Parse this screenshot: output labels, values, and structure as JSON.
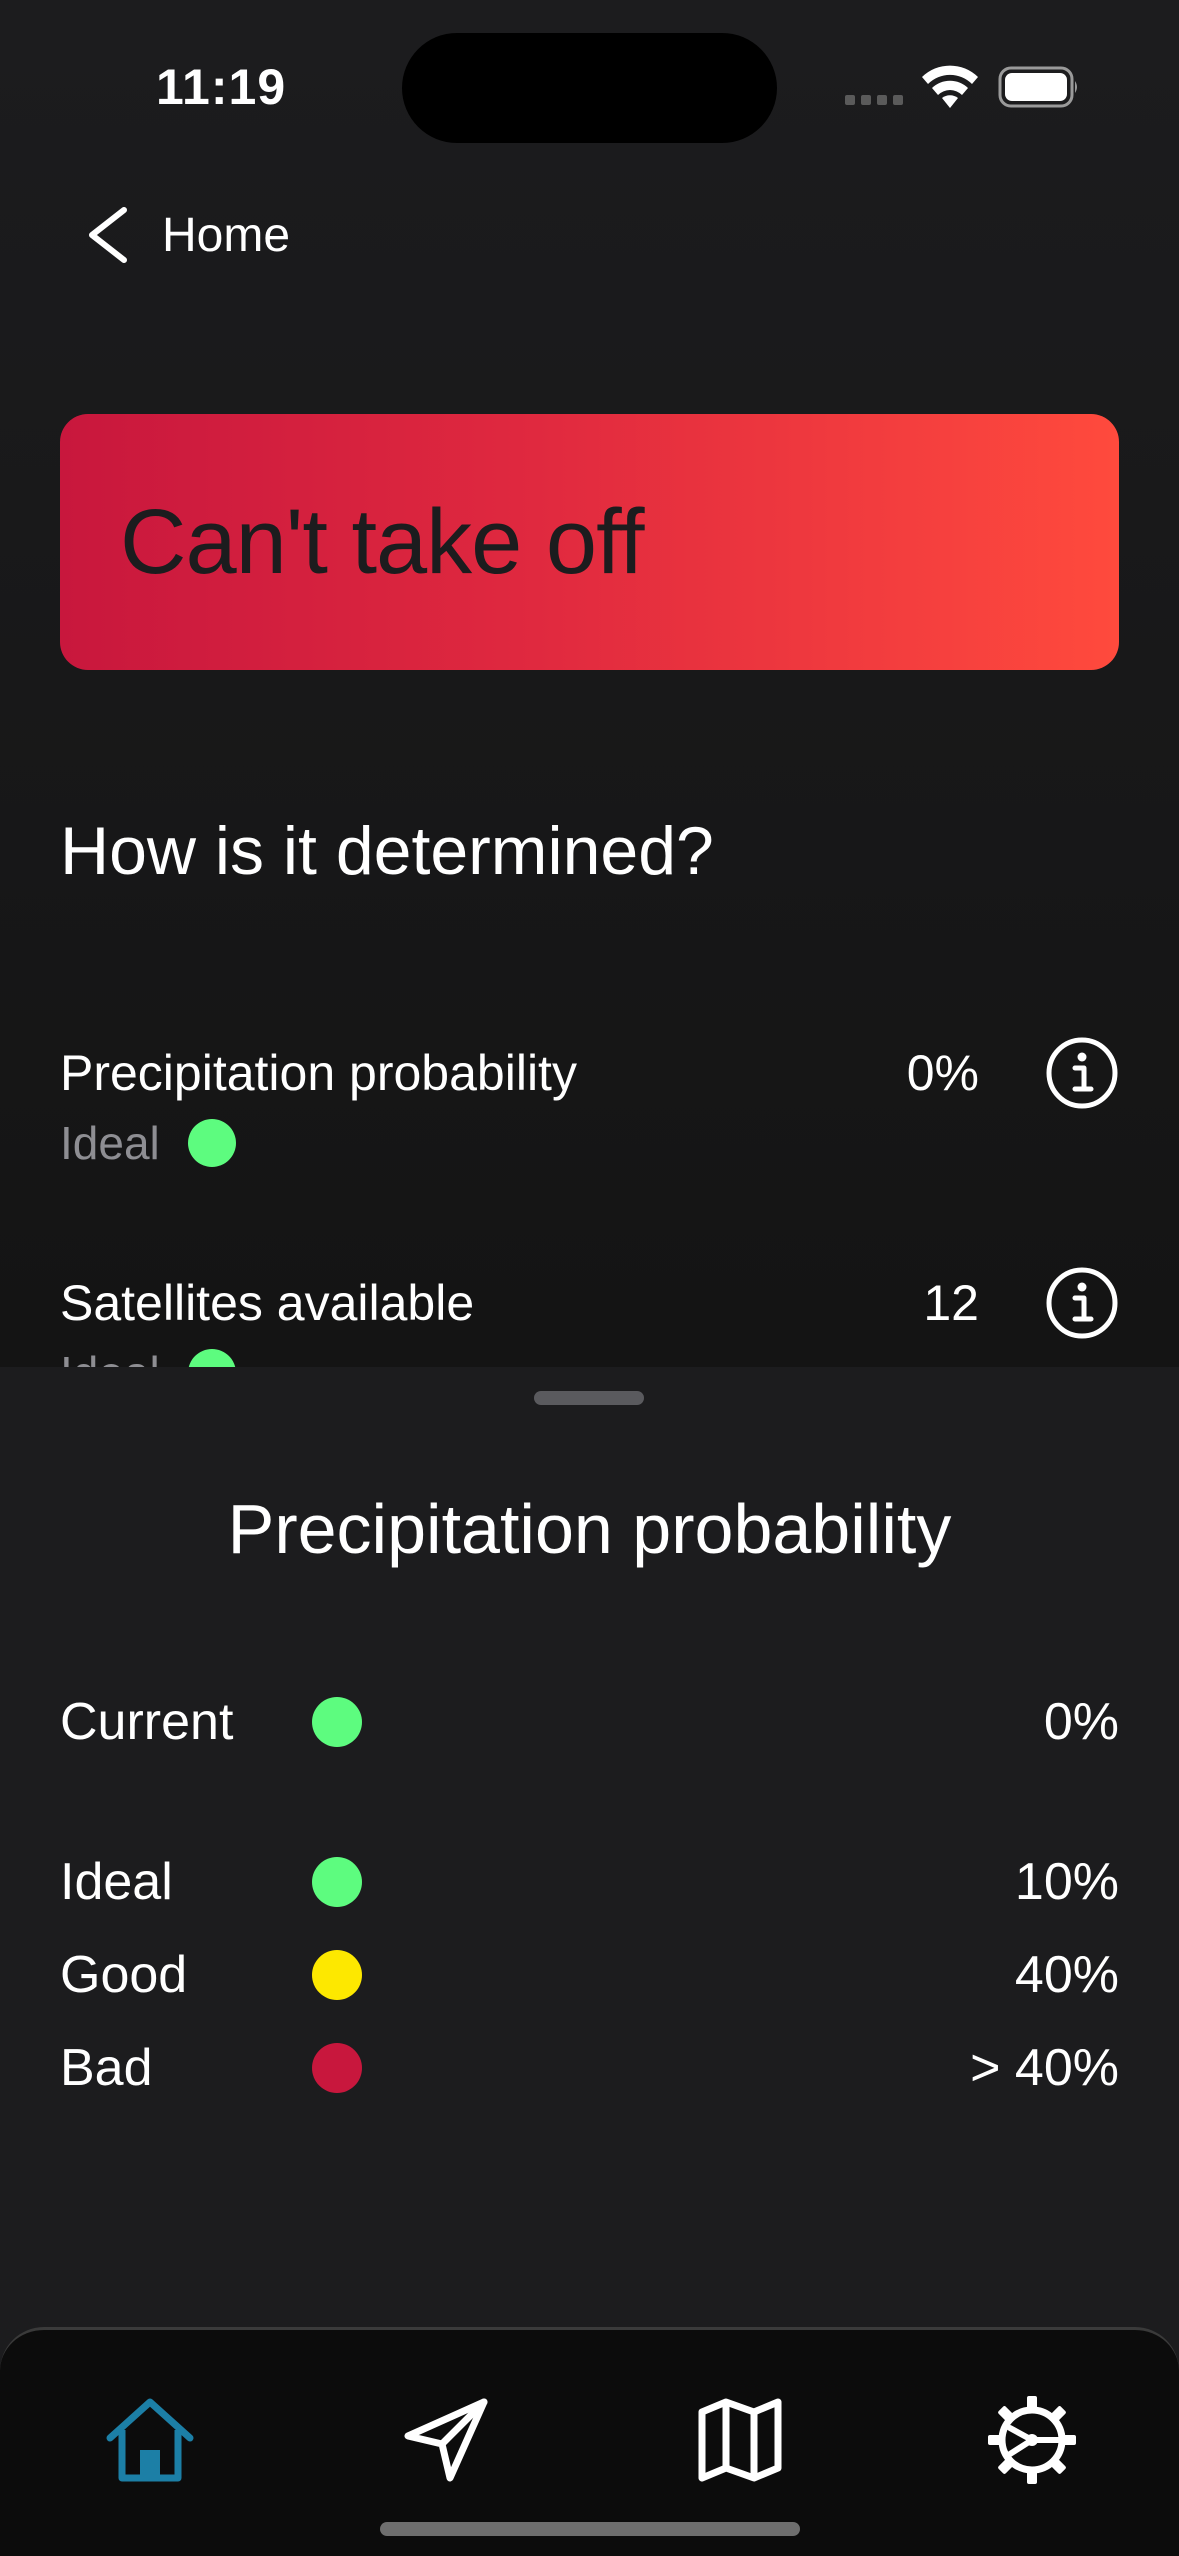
{
  "status_bar": {
    "time": "11:19"
  },
  "nav": {
    "back_label": "Home"
  },
  "banner": {
    "text": "Can't take off",
    "color_start": "#c8173d",
    "color_end": "#ff4a3d"
  },
  "section_title": "How is it determined?",
  "criteria": [
    {
      "name": "Precipitation probability",
      "value": "0%",
      "status": "Ideal",
      "status_color": "#5dfc7f"
    },
    {
      "name": "Satellites available",
      "value": "12",
      "status": "Ideal",
      "status_color": "#5dfc7f"
    }
  ],
  "sheet": {
    "title": "Precipitation probability",
    "current": {
      "label": "Current",
      "value": "0%",
      "color": "#5dfc7f"
    },
    "levels": [
      {
        "label": "Ideal",
        "value": "10%",
        "color": "#5dfc7f"
      },
      {
        "label": "Good",
        "value": "40%",
        "color": "#fde800"
      },
      {
        "label": "Bad",
        "value": "> 40%",
        "color": "#c8173d"
      }
    ]
  },
  "tabs": [
    {
      "icon": "home-icon",
      "active": true,
      "color": "#1c7fa6"
    },
    {
      "icon": "send-icon",
      "active": false
    },
    {
      "icon": "map-icon",
      "active": false
    },
    {
      "icon": "gear-icon",
      "active": false
    }
  ]
}
